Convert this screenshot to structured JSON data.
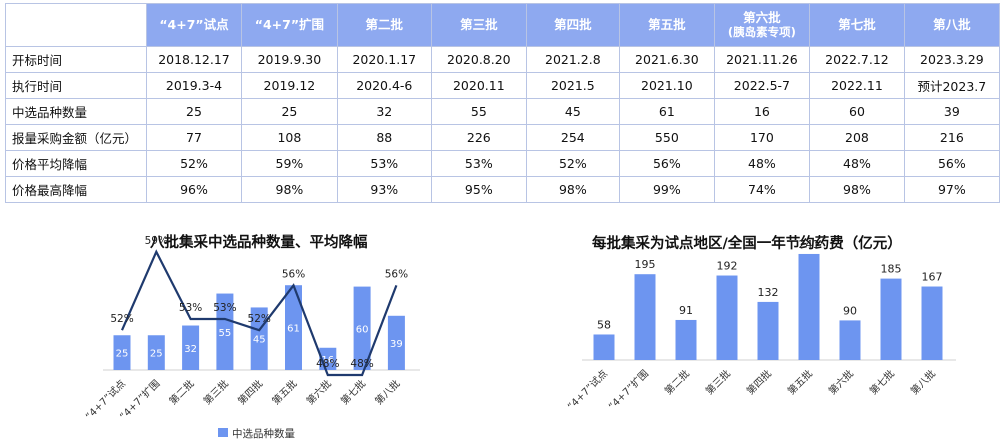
{
  "table": {
    "columns": [
      "“4+7”试点",
      "“4+7”扩围",
      "第二批",
      "第三批",
      "第四批",
      "第五批",
      "第六批",
      "第七批",
      "第八批"
    ],
    "column_subtitles": [
      "",
      "",
      "",
      "",
      "",
      "",
      "(胰岛素专项)",
      "",
      ""
    ],
    "rows": [
      {
        "label": "开标时间",
        "values": [
          "2018.12.17",
          "2019.9.30",
          "2020.1.17",
          "2020.8.20",
          "2021.2.8",
          "2021.6.30",
          "2021.11.26",
          "2022.7.12",
          "2023.3.29"
        ]
      },
      {
        "label": "执行时间",
        "values": [
          "2019.3-4",
          "2019.12",
          "2020.4-6",
          "2020.11",
          "2021.5",
          "2021.10",
          "2022.5-7",
          "2022.11",
          "预计2023.7"
        ]
      },
      {
        "label": "中选品种数量",
        "values": [
          "25",
          "25",
          "32",
          "55",
          "45",
          "61",
          "16",
          "60",
          "39"
        ]
      },
      {
        "label": "报量采购金额（亿元）",
        "values": [
          "77",
          "108",
          "88",
          "226",
          "254",
          "550",
          "170",
          "208",
          "216"
        ]
      },
      {
        "label": "价格平均降幅",
        "values": [
          "52%",
          "59%",
          "53%",
          "53%",
          "52%",
          "56%",
          "48%",
          "48%",
          "56%"
        ]
      },
      {
        "label": "价格最高降幅",
        "values": [
          "96%",
          "98%",
          "93%",
          "95%",
          "98%",
          "99%",
          "74%",
          "98%",
          "97%"
        ]
      }
    ]
  },
  "chart_data": [
    {
      "type": "bar",
      "title": "八批集采中选品种数量、平均降幅",
      "categories": [
        "“4+7”试点",
        "“4+7”扩围",
        "第二批",
        "第三批",
        "第四批",
        "第五批",
        "第六批",
        "第七批",
        "第八批"
      ],
      "series": [
        {
          "name": "中选品种数量",
          "type": "bar",
          "values": [
            25,
            25,
            32,
            55,
            45,
            61,
            16,
            60,
            39
          ],
          "color": "#6d95f0"
        },
        {
          "type": "line",
          "values": [
            52,
            59,
            53,
            53,
            52,
            56,
            48,
            48,
            56
          ],
          "value_labels": [
            "52%",
            "59%",
            "53%",
            "53%",
            "52%",
            "56%",
            "48%",
            "48%",
            "56%"
          ],
          "color": "#1f3a6e"
        }
      ],
      "legend": "bottom"
    },
    {
      "type": "bar",
      "title": "每批集采为试点地区/全国一年节约药费（亿元）",
      "categories": [
        "“4+7”试点",
        "“4+7”扩围",
        "第二批",
        "第三批",
        "第四批",
        "第五批",
        "第六批",
        "第七批",
        "第八批"
      ],
      "series": [
        {
          "values": [
            58,
            195,
            91,
            192,
            132,
            241,
            90,
            185,
            167
          ],
          "color": "#6d95f0"
        }
      ]
    }
  ]
}
